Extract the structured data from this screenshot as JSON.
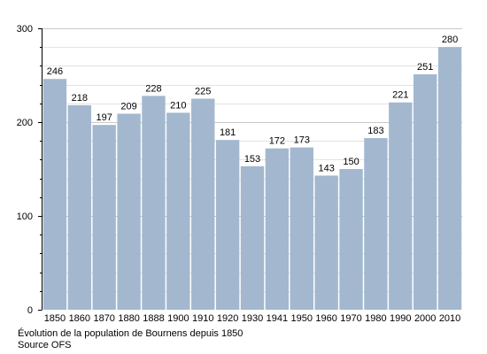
{
  "chart_data": {
    "type": "bar",
    "categories": [
      "1850",
      "1860",
      "1870",
      "1880",
      "1888",
      "1900",
      "1910",
      "1920",
      "1930",
      "1941",
      "1950",
      "1960",
      "1970",
      "1980",
      "1990",
      "2000",
      "2010"
    ],
    "values": [
      246,
      218,
      197,
      209,
      228,
      210,
      225,
      181,
      153,
      172,
      173,
      143,
      150,
      183,
      221,
      251,
      280
    ],
    "ylim": [
      0,
      300
    ],
    "yticks": [
      0,
      100,
      200,
      300
    ],
    "grid": true,
    "bar_color": "#a3b8cf",
    "grid_color": "#c8c8c8"
  },
  "caption": {
    "title": "Évolution de la population de Bournens depuis 1850",
    "source": "Source OFS"
  }
}
